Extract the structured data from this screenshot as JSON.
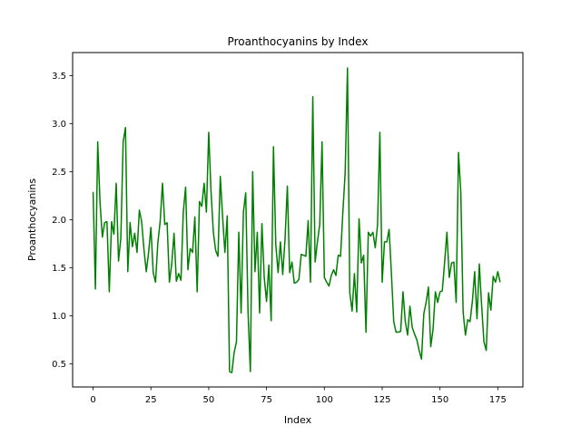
{
  "chart_data": {
    "type": "line",
    "title": "Proanthocyanins by Index",
    "xlabel": "Index",
    "ylabel": "Proanthocyanins",
    "xlim": [
      -8.85,
      185.85
    ],
    "ylim": [
      0.26,
      3.74
    ],
    "xticks": [
      0,
      25,
      50,
      75,
      100,
      125,
      150,
      175
    ],
    "yticks": [
      0.5,
      1.0,
      1.5,
      2.0,
      2.5,
      3.0,
      3.5
    ],
    "xtick_labels": [
      "0",
      "25",
      "50",
      "75",
      "100",
      "125",
      "150",
      "175"
    ],
    "ytick_labels": [
      "0.5",
      "1.0",
      "1.5",
      "2.0",
      "2.5",
      "3.0",
      "3.5"
    ],
    "grid": false,
    "line_color": "#008000",
    "series": [
      {
        "values": [
          2.29,
          1.28,
          2.81,
          2.18,
          1.82,
          1.97,
          1.98,
          1.25,
          1.98,
          1.85,
          2.38,
          1.57,
          1.81,
          2.81,
          2.96,
          1.46,
          1.97,
          1.72,
          1.86,
          1.66,
          2.1,
          1.98,
          1.69,
          1.46,
          1.66,
          1.92,
          1.45,
          1.35,
          1.76,
          1.98,
          2.38,
          1.95,
          1.97,
          1.35,
          1.54,
          1.86,
          1.36,
          1.44,
          1.37,
          2.08,
          2.34,
          1.48,
          1.7,
          1.66,
          2.03,
          1.25,
          2.19,
          2.14,
          2.38,
          2.08,
          2.91,
          2.29,
          1.87,
          1.68,
          1.62,
          2.45,
          2.03,
          1.66,
          2.04,
          0.42,
          0.41,
          0.62,
          0.73,
          1.87,
          1.03,
          2.08,
          2.28,
          1.04,
          0.42,
          2.5,
          1.46,
          1.87,
          1.03,
          1.96,
          1.4,
          1.15,
          1.53,
          0.95,
          2.76,
          1.74,
          1.45,
          1.77,
          1.43,
          1.8,
          2.35,
          1.45,
          1.56,
          1.34,
          1.35,
          1.38,
          1.64,
          1.63,
          1.62,
          1.99,
          1.35,
          3.28,
          1.56,
          1.77,
          1.95,
          2.81,
          1.4,
          1.35,
          1.31,
          1.42,
          1.48,
          1.42,
          1.63,
          1.62,
          2.08,
          2.49,
          3.58,
          1.24,
          1.05,
          1.44,
          1.04,
          2.01,
          1.55,
          1.63,
          0.83,
          1.87,
          1.83,
          1.87,
          1.71,
          1.95,
          2.91,
          1.35,
          1.77,
          1.77,
          1.9,
          1.44,
          0.94,
          0.83,
          0.83,
          0.84,
          1.25,
          0.94,
          0.8,
          1.1,
          0.88,
          0.81,
          0.75,
          0.64,
          0.55,
          1.02,
          1.14,
          1.3,
          0.68,
          0.86,
          1.25,
          1.14,
          1.25,
          1.26,
          1.56,
          1.87,
          1.4,
          1.55,
          1.56,
          1.14,
          2.7,
          2.29,
          1.04,
          0.8,
          0.96,
          0.94,
          1.15,
          1.46,
          0.97,
          1.54,
          1.11,
          0.73,
          0.64,
          1.24,
          1.06,
          1.41,
          1.35,
          1.46,
          1.35
        ]
      }
    ]
  }
}
